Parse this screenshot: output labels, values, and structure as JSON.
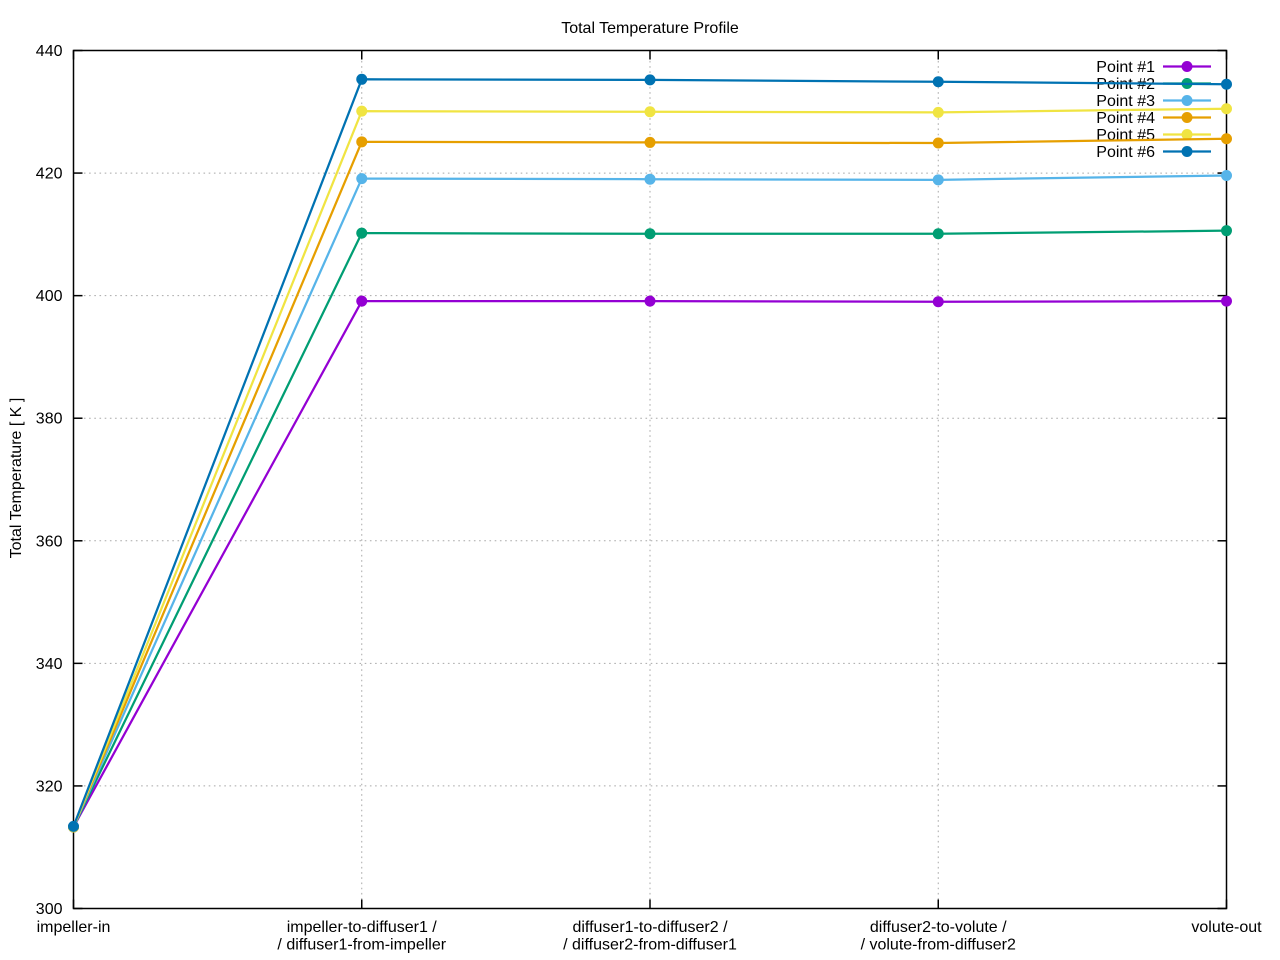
{
  "chart_data": {
    "type": "line",
    "title": "Total Temperature Profile",
    "xlabel": "",
    "ylabel": "Total Temperature [ K ]",
    "ylim": [
      300,
      440
    ],
    "yticks": [
      300,
      320,
      340,
      360,
      380,
      400,
      420,
      440
    ],
    "grid": true,
    "legend_position": "top-right-inside",
    "categories": [
      [
        "impeller-in"
      ],
      [
        "impeller-to-diffuser1 /",
        "/ diffuser1-from-impeller"
      ],
      [
        "diffuser1-to-diffuser2 /",
        "/ diffuser2-from-diffuser1"
      ],
      [
        "diffuser2-to-volute /",
        "/ volute-from-diffuser2"
      ],
      [
        "volute-out"
      ]
    ],
    "series": [
      {
        "name": "Point #1",
        "color": "#9400d3",
        "values": [
          313.3,
          399.1,
          399.1,
          399.0,
          399.1
        ]
      },
      {
        "name": "Point #2",
        "color": "#009e73",
        "values": [
          313.3,
          410.2,
          410.1,
          410.1,
          410.6
        ]
      },
      {
        "name": "Point #3",
        "color": "#56b4e9",
        "values": [
          313.3,
          419.1,
          419.0,
          418.9,
          419.6
        ]
      },
      {
        "name": "Point #4",
        "color": "#e69f00",
        "values": [
          313.3,
          425.1,
          425.0,
          424.9,
          425.6
        ]
      },
      {
        "name": "Point #5",
        "color": "#f0e442",
        "values": [
          313.3,
          430.1,
          430.0,
          429.9,
          430.5
        ]
      },
      {
        "name": "Point #6",
        "color": "#0072b2",
        "values": [
          313.4,
          435.3,
          435.2,
          434.9,
          434.5
        ]
      }
    ]
  }
}
